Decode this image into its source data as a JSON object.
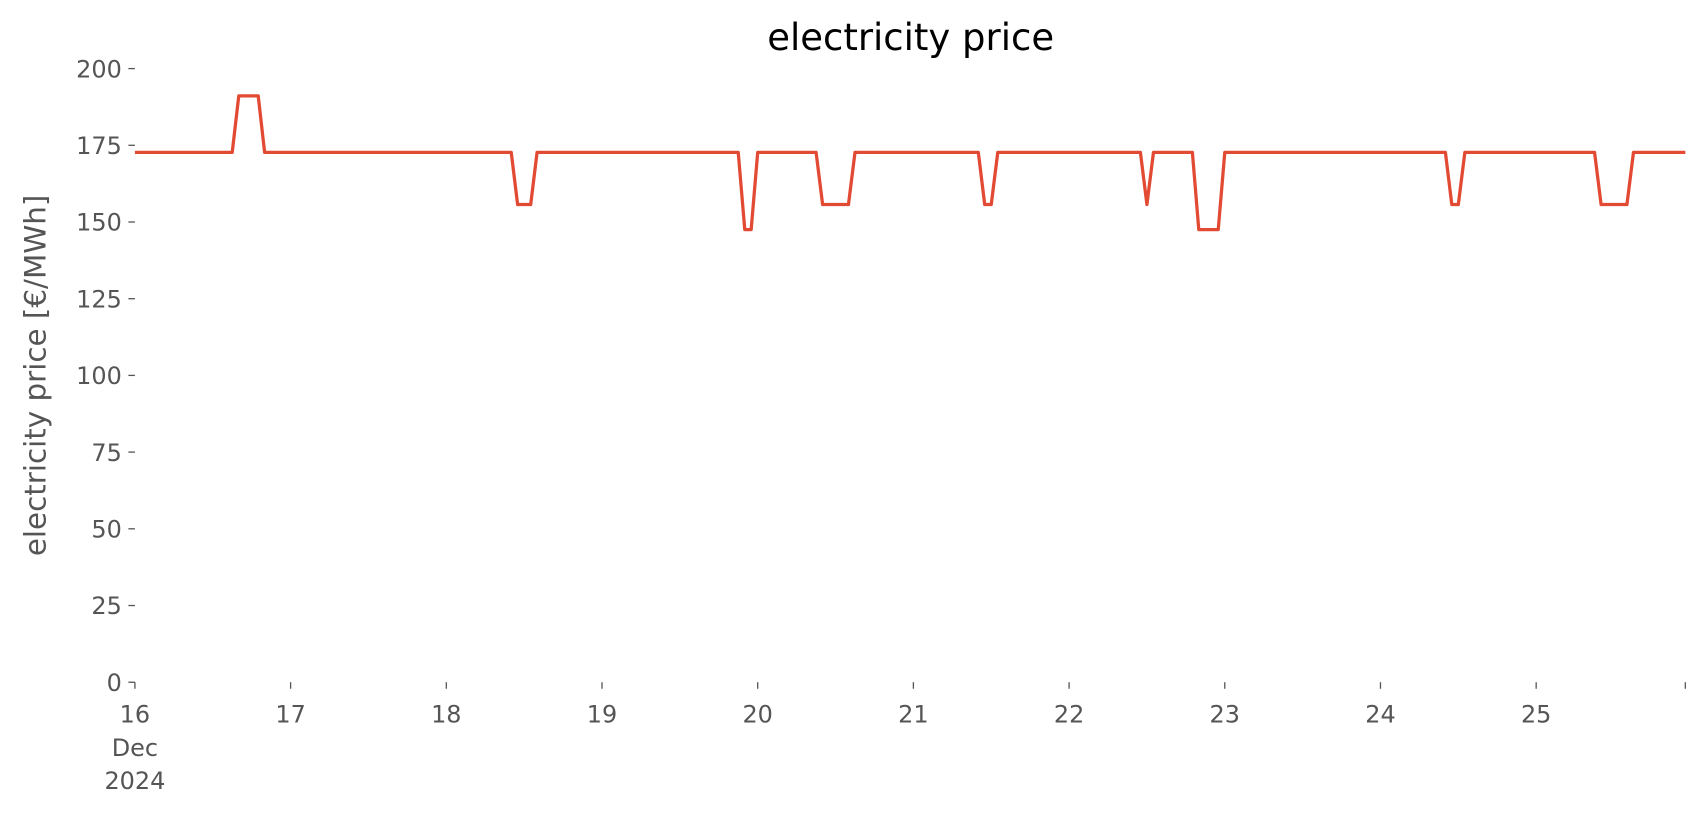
{
  "chart_data": {
    "type": "line",
    "title": "electricity price",
    "ylabel": "electricity price [€/MWh]",
    "x": [
      16,
      16.625,
      16.667,
      16.792,
      16.833,
      18.417,
      18.458,
      18.542,
      18.583,
      19.875,
      19.917,
      19.958,
      20,
      20.375,
      20.417,
      20.583,
      20.625,
      21.417,
      21.458,
      21.5,
      21.542,
      22.458,
      22.5,
      22.542,
      22.792,
      22.833,
      22.958,
      23,
      24.417,
      24.458,
      24.5,
      24.542,
      25.375,
      25.417,
      25.583,
      25.625,
      25.958
    ],
    "series": [
      {
        "name": "electricity price",
        "color": "#e24a33",
        "values": [
          172.7,
          172.7,
          191.1,
          191.1,
          172.7,
          172.7,
          155.7,
          155.7,
          172.7,
          172.7,
          147.5,
          147.5,
          172.7,
          172.7,
          155.7,
          155.7,
          172.7,
          172.7,
          155.7,
          155.7,
          172.7,
          172.7,
          155.7,
          172.7,
          172.7,
          147.5,
          147.5,
          172.7,
          172.7,
          155.7,
          155.7,
          172.7,
          172.7,
          155.7,
          155.7,
          172.7,
          172.7
        ]
      }
    ],
    "xlim": [
      16,
      25.958
    ],
    "xticks": [
      16,
      17,
      18,
      19,
      20,
      21,
      22,
      23,
      24,
      25,
      {
        "value": 25.958,
        "label": null
      }
    ],
    "xtick_sublabels": [
      "Dec",
      "2024"
    ],
    "ylim": [
      0,
      200
    ],
    "yticks": [
      0,
      25,
      50,
      75,
      100,
      125,
      150,
      175,
      200
    ],
    "grid": false
  }
}
